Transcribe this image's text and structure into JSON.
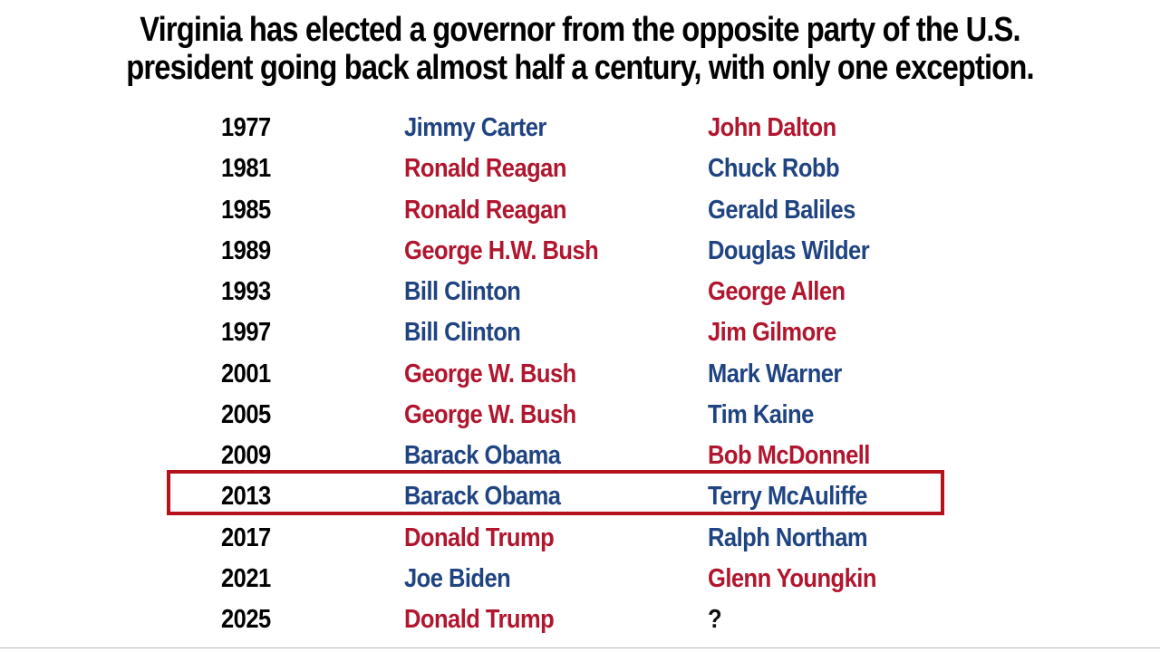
{
  "header": {
    "title": [
      "Virginia has elected a governor from the opposite party of the U.S.",
      "president going back almost half a century, with only one exception."
    ]
  },
  "table": {
    "highlight_color": "#b5121b",
    "rows": [
      {
        "year": "1977",
        "president": {
          "text": "Jimmy Carter",
          "color": "#1f4481"
        },
        "governor": {
          "text": "John Dalton",
          "color": "#b1162e"
        }
      },
      {
        "year": "1981",
        "president": {
          "text": "Ronald Reagan",
          "color": "#b1162e"
        },
        "governor": {
          "text": "Chuck Robb",
          "color": "#1f4481"
        }
      },
      {
        "year": "1985",
        "president": {
          "text": "Ronald Reagan",
          "color": "#b1162e"
        },
        "governor": {
          "text": "Gerald Baliles",
          "color": "#1f4481"
        }
      },
      {
        "year": "1989",
        "president": {
          "text": "George H.W. Bush",
          "color": "#b1162e"
        },
        "governor": {
          "text": "Douglas Wilder",
          "color": "#1f4481"
        }
      },
      {
        "year": "1993",
        "president": {
          "text": "Bill Clinton",
          "color": "#1f4481"
        },
        "governor": {
          "text": "George Allen",
          "color": "#b1162e"
        }
      },
      {
        "year": "1997",
        "president": {
          "text": "Bill Clinton",
          "color": "#1f4481"
        },
        "governor": {
          "text": "Jim Gilmore",
          "color": "#b1162e"
        }
      },
      {
        "year": "2001",
        "president": {
          "text": "George W. Bush",
          "color": "#b1162e"
        },
        "governor": {
          "text": "Mark Warner",
          "color": "#1f4481"
        }
      },
      {
        "year": "2005",
        "president": {
          "text": "George W. Bush",
          "color": "#b1162e"
        },
        "governor": {
          "text": "Tim Kaine",
          "color": "#1f4481"
        }
      },
      {
        "year": "2009",
        "president": {
          "text": "Barack Obama",
          "color": "#1f4481"
        },
        "governor": {
          "text": "Bob McDonnell",
          "color": "#b1162e"
        }
      },
      {
        "year": "2013",
        "president": {
          "text": "Barack Obama",
          "color": "#1f4481"
        },
        "governor": {
          "text": "Terry McAuliffe",
          "color": "#1f4481"
        },
        "highlighted": true
      },
      {
        "year": "2017",
        "president": {
          "text": "Donald Trump",
          "color": "#b1162e"
        },
        "governor": {
          "text": "Ralph Northam",
          "color": "#1f4481"
        }
      },
      {
        "year": "2021",
        "president": {
          "text": "Joe Biden",
          "color": "#1f4481"
        },
        "governor": {
          "text": "Glenn Youngkin",
          "color": "#b1162e"
        }
      },
      {
        "year": "2025",
        "president": {
          "text": "Donald Trump",
          "color": "#b1162e"
        },
        "governor": {
          "text": "?",
          "color": "#111111"
        }
      }
    ]
  }
}
